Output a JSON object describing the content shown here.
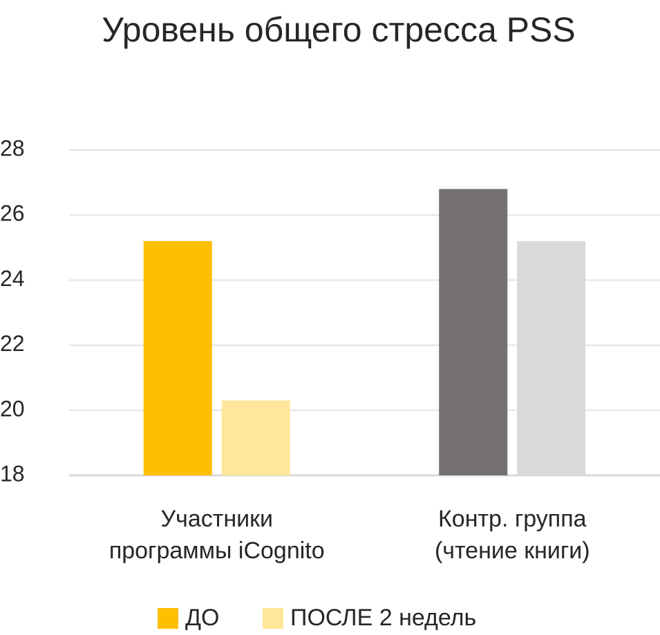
{
  "chart_data": {
    "type": "bar",
    "title": "Уровень общего стресса PSS",
    "categories": [
      [
        "Участники",
        "программы iCognito"
      ],
      [
        "Контр. группа",
        "(чтение книги)"
      ]
    ],
    "series": [
      {
        "name": "ДО",
        "color": "#fdbf00",
        "colors": [
          "#fdbf00",
          "#767171"
        ],
        "values": [
          25.2,
          26.8
        ]
      },
      {
        "name": "ПОСЛЕ 2 недель",
        "color": "#ffe699",
        "colors": [
          "#ffe699",
          "#d9d9d9"
        ],
        "values": [
          20.3,
          25.2
        ]
      }
    ],
    "ylim": [
      18,
      28
    ],
    "yticks": [
      18,
      20,
      22,
      24,
      26,
      28
    ],
    "grid": true
  }
}
